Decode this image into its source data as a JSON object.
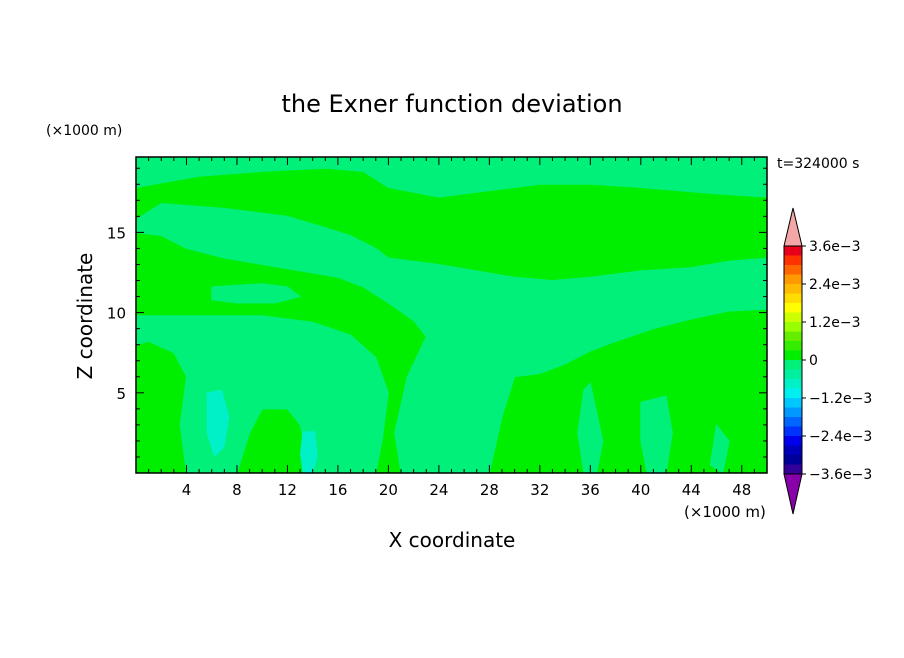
{
  "chart_data": {
    "type": "heatmap",
    "title": "the Exner function deviation",
    "time_label": "t=324000 s",
    "xlabel": "X coordinate",
    "ylabel": "Z coordinate",
    "x_unit": "(×1000 m)",
    "y_unit": "(×1000 m)",
    "xlim": [
      0,
      50
    ],
    "ylim": [
      0,
      19.7
    ],
    "x_ticks": [
      4,
      8,
      12,
      16,
      20,
      24,
      28,
      32,
      36,
      40,
      44,
      48
    ],
    "y_ticks": [
      5,
      10,
      15
    ],
    "colorbar": {
      "labels": [
        "3.6e−3",
        "2.4e−3",
        "1.2e−3",
        "0",
        "−1.2e−3",
        "−2.4e−3",
        "−3.6e−3"
      ],
      "label_values": [
        0.0036,
        0.0024,
        0.0012,
        0,
        -0.0012,
        -0.0024,
        -0.0036
      ],
      "levels": [
        {
          "lo": 0.0036,
          "hi": null,
          "color": "#f4a7a7"
        },
        {
          "lo": 0.0033,
          "hi": 0.0036,
          "color": "#e8001a"
        },
        {
          "lo": 0.003,
          "hi": 0.0033,
          "color": "#ff3300"
        },
        {
          "lo": 0.0027,
          "hi": 0.003,
          "color": "#ff6600"
        },
        {
          "lo": 0.0024,
          "hi": 0.0027,
          "color": "#ff9900"
        },
        {
          "lo": 0.0021,
          "hi": 0.0024,
          "color": "#ffbb00"
        },
        {
          "lo": 0.0018,
          "hi": 0.0021,
          "color": "#ffdd00"
        },
        {
          "lo": 0.0015,
          "hi": 0.0018,
          "color": "#ffff00"
        },
        {
          "lo": 0.0012,
          "hi": 0.0015,
          "color": "#ccff00"
        },
        {
          "lo": 0.0009,
          "hi": 0.0012,
          "color": "#99ff00"
        },
        {
          "lo": 0.0006,
          "hi": 0.0009,
          "color": "#66ee00"
        },
        {
          "lo": 0.0003,
          "hi": 0.0006,
          "color": "#33ee00"
        },
        {
          "lo": 0.0,
          "hi": 0.0003,
          "color": "#00ee00"
        },
        {
          "lo": -0.0003,
          "hi": 0.0,
          "color": "#00f07a"
        },
        {
          "lo": -0.0006,
          "hi": -0.0003,
          "color": "#00f0a0"
        },
        {
          "lo": -0.0009,
          "hi": -0.0006,
          "color": "#00f0c8"
        },
        {
          "lo": -0.0012,
          "hi": -0.0009,
          "color": "#00f0f0"
        },
        {
          "lo": -0.0015,
          "hi": -0.0012,
          "color": "#00c8ff"
        },
        {
          "lo": -0.0018,
          "hi": -0.0015,
          "color": "#0099ff"
        },
        {
          "lo": -0.0021,
          "hi": -0.0018,
          "color": "#0066ff"
        },
        {
          "lo": -0.0024,
          "hi": -0.0021,
          "color": "#0033ff"
        },
        {
          "lo": -0.0027,
          "hi": -0.0024,
          "color": "#0000ee"
        },
        {
          "lo": -0.003,
          "hi": -0.0027,
          "color": "#0000bb"
        },
        {
          "lo": -0.0033,
          "hi": -0.003,
          "color": "#000099"
        },
        {
          "lo": -0.0036,
          "hi": -0.0033,
          "color": "#330099"
        },
        {
          "lo": null,
          "hi": -0.0036,
          "color": "#8800aa"
        }
      ]
    },
    "field": {
      "background_color": "#00ee00",
      "secondary_color": "#00f07a",
      "secondary_regions": [
        {
          "points": [
            [
              0,
              19.7
            ],
            [
              50,
              19.7
            ],
            [
              50,
              17.2
            ],
            [
              46,
              17.4
            ],
            [
              40,
              17.8
            ],
            [
              36,
              18.0
            ],
            [
              32,
              18.0
            ],
            [
              28,
              17.6
            ],
            [
              24,
              17.2
            ],
            [
              20,
              17.8
            ],
            [
              18,
              18.8
            ],
            [
              15,
              19.0
            ],
            [
              10,
              18.8
            ],
            [
              5,
              18.5
            ],
            [
              0,
              17.8
            ]
          ]
        },
        {
          "points": [
            [
              2,
              16.8
            ],
            [
              7,
              16.5
            ],
            [
              12,
              16.0
            ],
            [
              15,
              15.3
            ],
            [
              17,
              14.8
            ],
            [
              18,
              14.4
            ],
            [
              19,
              14.0
            ],
            [
              20,
              13.4
            ],
            [
              22,
              13.2
            ],
            [
              24,
              13.0
            ],
            [
              27,
              12.6
            ],
            [
              30,
              12.2
            ],
            [
              33,
              12.0
            ],
            [
              36,
              12.2
            ],
            [
              40,
              12.6
            ],
            [
              44,
              12.8
            ],
            [
              47,
              13.2
            ],
            [
              50,
              13.4
            ],
            [
              50,
              10.2
            ],
            [
              47,
              10.1
            ],
            [
              44,
              9.6
            ],
            [
              41,
              9.0
            ],
            [
              38,
              8.2
            ],
            [
              36,
              7.6
            ],
            [
              34,
              6.8
            ],
            [
              32,
              6.2
            ],
            [
              30,
              6.0
            ],
            [
              29,
              3.5
            ],
            [
              28,
              0
            ],
            [
              21,
              0
            ],
            [
              20.5,
              2.5
            ],
            [
              21.5,
              6.0
            ],
            [
              23,
              8.5
            ],
            [
              22,
              9.5
            ],
            [
              20,
              10.6
            ],
            [
              18,
              11.6
            ],
            [
              16,
              12.2
            ],
            [
              13,
              12.6
            ],
            [
              10,
              13.0
            ],
            [
              7,
              13.4
            ],
            [
              4,
              14.0
            ],
            [
              2,
              14.8
            ],
            [
              0,
              15.0
            ],
            [
              0,
              15.8
            ]
          ]
        },
        {
          "points": [
            [
              0,
              9.8
            ],
            [
              5,
              9.8
            ],
            [
              10,
              9.8
            ],
            [
              14,
              9.4
            ],
            [
              17,
              8.6
            ],
            [
              19,
              7.2
            ],
            [
              20,
              5.0
            ],
            [
              19.5,
              2.0
            ],
            [
              19,
              0
            ],
            [
              14,
              0
            ],
            [
              13,
              3.0
            ],
            [
              12,
              4.0
            ],
            [
              10,
              4.0
            ],
            [
              9,
              2.5
            ],
            [
              8,
              0
            ],
            [
              4,
              0
            ],
            [
              3.5,
              3.0
            ],
            [
              4,
              6.0
            ],
            [
              3,
              7.5
            ],
            [
              1,
              8.2
            ],
            [
              0,
              8.0
            ]
          ]
        },
        {
          "points": [
            [
              6,
              11.6
            ],
            [
              10,
              11.8
            ],
            [
              12,
              11.6
            ],
            [
              13,
              11.0
            ],
            [
              11,
              10.6
            ],
            [
              8,
              10.6
            ],
            [
              6,
              10.8
            ]
          ]
        },
        {
          "points": [
            [
              40,
              19.7
            ],
            [
              46,
              19.7
            ],
            [
              47,
              19.0
            ],
            [
              43,
              18.8
            ],
            [
              40,
              19.2
            ]
          ]
        },
        {
          "points": [
            [
              36,
              5.6
            ],
            [
              37,
              2.0
            ],
            [
              36.5,
              0
            ],
            [
              35.5,
              0
            ],
            [
              35,
              2.5
            ],
            [
              35.5,
              5.2
            ]
          ]
        },
        {
          "points": [
            [
              40,
              4.4
            ],
            [
              42,
              4.8
            ],
            [
              42.5,
              2.5
            ],
            [
              42,
              0
            ],
            [
              40.5,
              0
            ],
            [
              40,
              2.0
            ]
          ]
        },
        {
          "points": [
            [
              46,
              3.0
            ],
            [
              47,
              2.0
            ],
            [
              46.5,
              0
            ],
            [
              45.5,
              0.5
            ],
            [
              45.8,
              2.0
            ]
          ]
        }
      ],
      "tertiary_color": "#00f0c8",
      "tertiary_regions": [
        {
          "points": [
            [
              5.6,
              5.0
            ],
            [
              6.8,
              5.2
            ],
            [
              7.4,
              3.5
            ],
            [
              7.0,
              1.6
            ],
            [
              6.2,
              1.0
            ],
            [
              5.6,
              2.5
            ]
          ]
        },
        {
          "points": [
            [
              13.2,
              2.6
            ],
            [
              14.2,
              2.6
            ],
            [
              14.4,
              1.0
            ],
            [
              14.0,
              0
            ],
            [
              13.2,
              0
            ],
            [
              13.0,
              1.2
            ]
          ]
        }
      ]
    }
  }
}
